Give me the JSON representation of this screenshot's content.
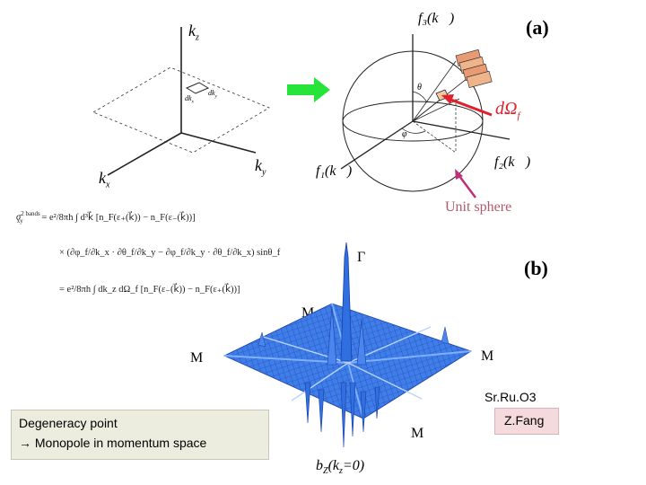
{
  "panel_a": {
    "label": "(a)",
    "kspace_axes": {
      "kz": "k",
      "kz_sub": "z",
      "kx": "k",
      "kx_sub": "x",
      "ky": "k",
      "ky_sub": "y"
    },
    "patch_labels": {
      "dkx": "dk",
      "dky": "dk"
    },
    "sphere_axes": {
      "f3": "f₃(k⃗)",
      "f2": "f₂(k⃗)",
      "f1": "f₁(k⃗)"
    },
    "theta_label": "θ",
    "phi_label": "φ",
    "solid_angle": "dΩ",
    "solid_angle_sub": "f⃗",
    "unit_sphere": "Unit sphere",
    "colors": {
      "arrow_green": "#27e43a",
      "red": "#e0202a",
      "unit_sphere_text": "#b05a6a"
    }
  },
  "equation": {
    "line1_lhs": "σ",
    "line1_sup": "2 bands",
    "line1_sub": "xy",
    "line1": "=  e²/8πh ∫ d³k⃗ [n_F(ε₊(k⃗)) − n_F(ε₋(k⃗))]",
    "line2": "×  (∂φ_f/∂k_x · ∂θ_f/∂k_y − ∂φ_f/∂k_y · ∂θ_f/∂k_x) sinθ_f",
    "line3": "=  e²/8πh ∫ dk_z dΩ_f [n_F(ε₋(k⃗)) − n_F(ε₊(k⃗))]"
  },
  "panel_b": {
    "label": "(b)",
    "gamma": "Γ",
    "m_labels": [
      "M",
      "M",
      "M",
      "M"
    ],
    "bottom_caption": "b",
    "bottom_caption_sub": "Z",
    "bottom_caption_rest": "(k",
    "bottom_caption_sub2": "z",
    "bottom_caption_end": "=0)",
    "surface_color": "#2f6fe0"
  },
  "notes": {
    "material": "Sr.Ru.O3",
    "author": "Z.Fang",
    "degeneracy_line1": "Degeneracy point",
    "degeneracy_line2": "→ Monopole in momentum space"
  }
}
